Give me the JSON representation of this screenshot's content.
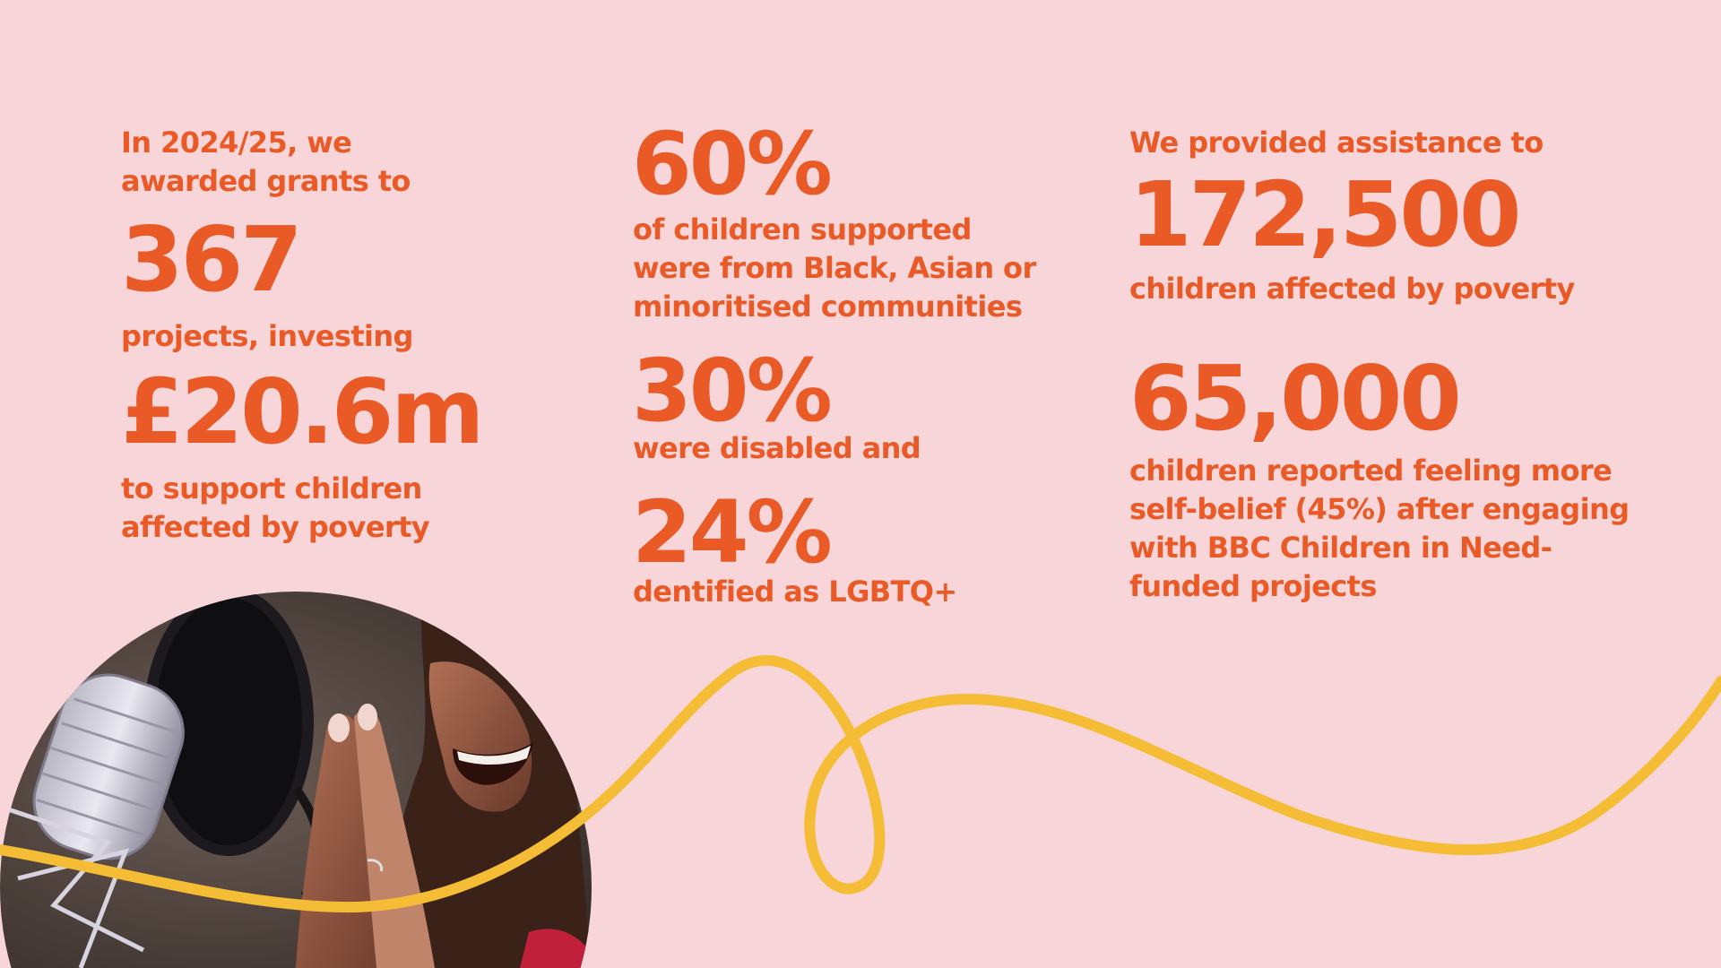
{
  "col1": {
    "intro_line1": "In 2024/25, we",
    "intro_line2": "awarded grants to",
    "projects_number": "367",
    "projects_label": "projects, investing",
    "amount": "£20.6m",
    "support_line1": "to support children",
    "support_line2": "affected by poverty"
  },
  "col2": {
    "stat1_value": "60%",
    "stat1_line1": "of children supported",
    "stat1_line2": "were from Black, Asian or",
    "stat1_line3": "minoritised communities",
    "stat2_value": "30%",
    "stat2_line1": "were disabled and",
    "stat3_value": "24%",
    "stat3_line1": "dentified as LGBTQ+"
  },
  "col3": {
    "intro_line1": "We provided assistance to",
    "children_number": "172,500",
    "children_label": "children affected by poverty",
    "selfbelief_number": "65,000",
    "selfbelief_line1": "children reported feeling more",
    "selfbelief_line2": "self-belief (45%) after engaging",
    "selfbelief_line3": "with BBC Children in Need-",
    "selfbelief_line4": "funded projects"
  },
  "colors": {
    "background": "#f8d5d8",
    "text": "#ea5a27",
    "squiggle": "#f4bd35"
  },
  "photo": {
    "subject": "person singing at microphone with pop filter"
  }
}
